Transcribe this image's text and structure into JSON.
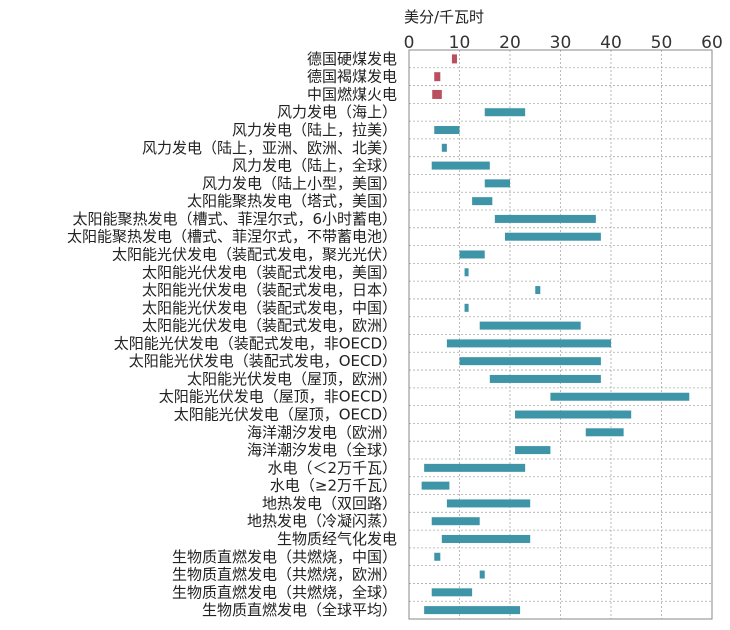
{
  "chart_data": {
    "type": "bar",
    "orientation": "horizontal-range",
    "unit_label": "美分/千瓦时",
    "xlim": [
      0,
      60
    ],
    "xticks": [
      0,
      10,
      20,
      30,
      40,
      50,
      60
    ],
    "grid": true,
    "colors": {
      "range": "#3f95a8",
      "marker": "#b8505f"
    },
    "categories": [
      "德国硬煤发电",
      "德国褐煤发电",
      "中国燃煤火电",
      "风力发电（海上）",
      "风力发电（陆上，拉美）",
      "风力发电（陆上，亚洲、欧洲、北美）",
      "风力发电（陆上，全球）",
      "风力发电（陆上小型，美国）",
      "太阳能聚热发电（塔式，美国）",
      "太阳能聚热发电（槽式、菲涅尔式，6小时蓄电）",
      "太阳能聚热发电（槽式、菲涅尔式，不带蓄电池）",
      "太阳能光伏发电（装配式发电，聚光光伏）",
      "太阳能光伏发电（装配式发电，美国）",
      "太阳能光伏发电（装配式发电，日本）",
      "太阳能光伏发电（装配式发电，中国）",
      "太阳能光伏发电（装配式发电，欧洲）",
      "太阳能光伏发电（装配式发电，非OECD）",
      "太阳能光伏发电（装配式发电，OECD）",
      "太阳能光伏发电（屋顶，欧洲）",
      "太阳能光伏发电（屋顶，非OECD）",
      "太阳能光伏发电（屋顶，OECD）",
      "海洋潮汐发电（欧洲）",
      "海洋潮汐发电（全球）",
      "水电（＜2万千瓦）",
      "水电（≥2万千瓦）",
      "地热发电（双回路）",
      "地热发电（冷凝闪蒸）",
      "生物质经气化发电",
      "生物质直燃发电（共燃烧，中国）",
      "生物质直燃发电（共燃烧，欧洲）",
      "生物质直燃发电（共燃烧，全球）",
      "生物质直燃发电（全球平均）"
    ],
    "ranges": [
      [
        8.5,
        9.5
      ],
      [
        5.0,
        6.2
      ],
      [
        4.6,
        6.5
      ],
      [
        15.0,
        23.0
      ],
      [
        5.0,
        10.0
      ],
      [
        6.5,
        7.5
      ],
      [
        4.5,
        16.0
      ],
      [
        15.0,
        20.0
      ],
      [
        12.5,
        16.5
      ],
      [
        17.0,
        37.0
      ],
      [
        19.0,
        38.0
      ],
      [
        10.0,
        15.0
      ],
      [
        11.0,
        11.8
      ],
      [
        25.0,
        26.0
      ],
      [
        11.0,
        11.8
      ],
      [
        14.0,
        34.0
      ],
      [
        7.5,
        40.0
      ],
      [
        10.0,
        38.0
      ],
      [
        16.0,
        38.0
      ],
      [
        28.0,
        55.5
      ],
      [
        21.0,
        44.0
      ],
      [
        35.0,
        42.5
      ],
      [
        21.0,
        28.0
      ],
      [
        3.0,
        23.0
      ],
      [
        2.5,
        8.0
      ],
      [
        7.5,
        24.0
      ],
      [
        4.5,
        14.0
      ],
      [
        6.5,
        24.0
      ],
      [
        5.0,
        6.2
      ],
      [
        14.0,
        15.0
      ],
      [
        4.5,
        12.5
      ],
      [
        3.0,
        22.0
      ]
    ],
    "marker_categories": [
      "德国硬煤发电",
      "德国褐煤发电",
      "中国燃煤火电"
    ]
  }
}
